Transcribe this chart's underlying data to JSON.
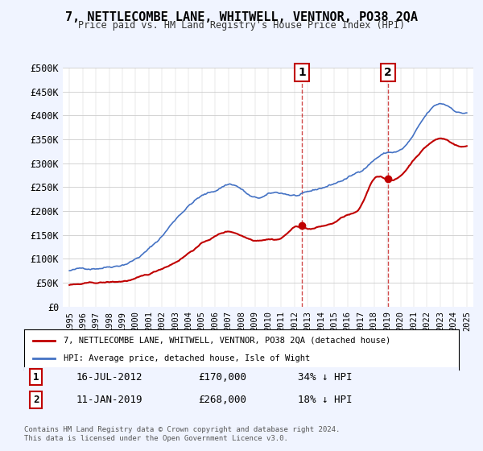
{
  "title": "7, NETTLECOMBE LANE, WHITWELL, VENTNOR, PO38 2QA",
  "subtitle": "Price paid vs. HM Land Registry's House Price Index (HPI)",
  "background_color": "#f0f4ff",
  "plot_bg_color": "#ffffff",
  "ylabel": "",
  "xlabel": "",
  "ylim": [
    0,
    500000
  ],
  "yticks": [
    0,
    50000,
    100000,
    150000,
    200000,
    250000,
    300000,
    350000,
    400000,
    450000,
    500000
  ],
  "ytick_labels": [
    "£0",
    "£50K",
    "£100K",
    "£150K",
    "£200K",
    "£250K",
    "£300K",
    "£350K",
    "£400K",
    "£450K",
    "£500K"
  ],
  "hpi_color": "#4472c4",
  "price_color": "#c00000",
  "marker1_date_idx": 17.5,
  "marker2_date_idx": 24.0,
  "sale1_label": "1",
  "sale2_label": "2",
  "sale1_date": "16-JUL-2012",
  "sale1_price": "£170,000",
  "sale1_pct": "34% ↓ HPI",
  "sale2_date": "11-JAN-2019",
  "sale2_price": "£268,000",
  "sale2_pct": "18% ↓ HPI",
  "legend_line1": "7, NETTLECOMBE LANE, WHITWELL, VENTNOR, PO38 2QA (detached house)",
  "legend_line2": "HPI: Average price, detached house, Isle of Wight",
  "footer": "Contains HM Land Registry data © Crown copyright and database right 2024.\nThis data is licensed under the Open Government Licence v3.0.",
  "xstart_year": 1995,
  "xend_year": 2025
}
